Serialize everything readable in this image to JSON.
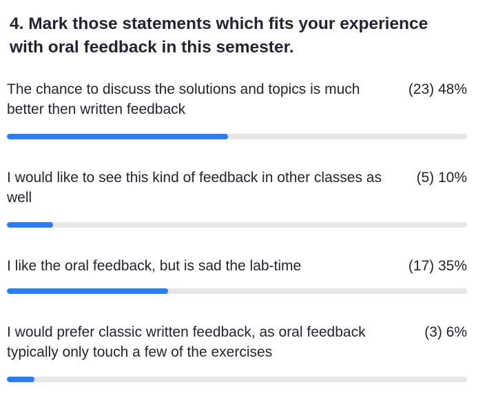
{
  "question": {
    "title": "4. Mark those statements which fits your experience with oral feedback in this semester."
  },
  "options": [
    {
      "label": "The chance to discuss the solutions and topics is much better then written feedback",
      "result": "(23) 48%",
      "percent": 48
    },
    {
      "label": "I would like to see this kind of feedback in other classes as well",
      "result": "(5) 10%",
      "percent": 10
    },
    {
      "label": "I like the oral feedback, but is sad the lab-time",
      "result": "(17) 35%",
      "percent": 35
    },
    {
      "label": "I would prefer classic written feedback, as oral feedback typically only touch a few of the exercises",
      "result": "(3) 6%",
      "percent": 6
    }
  ],
  "colors": {
    "bar_fill": "#2d7cf6",
    "bar_track": "#e5e5ea",
    "text": "#232333"
  }
}
